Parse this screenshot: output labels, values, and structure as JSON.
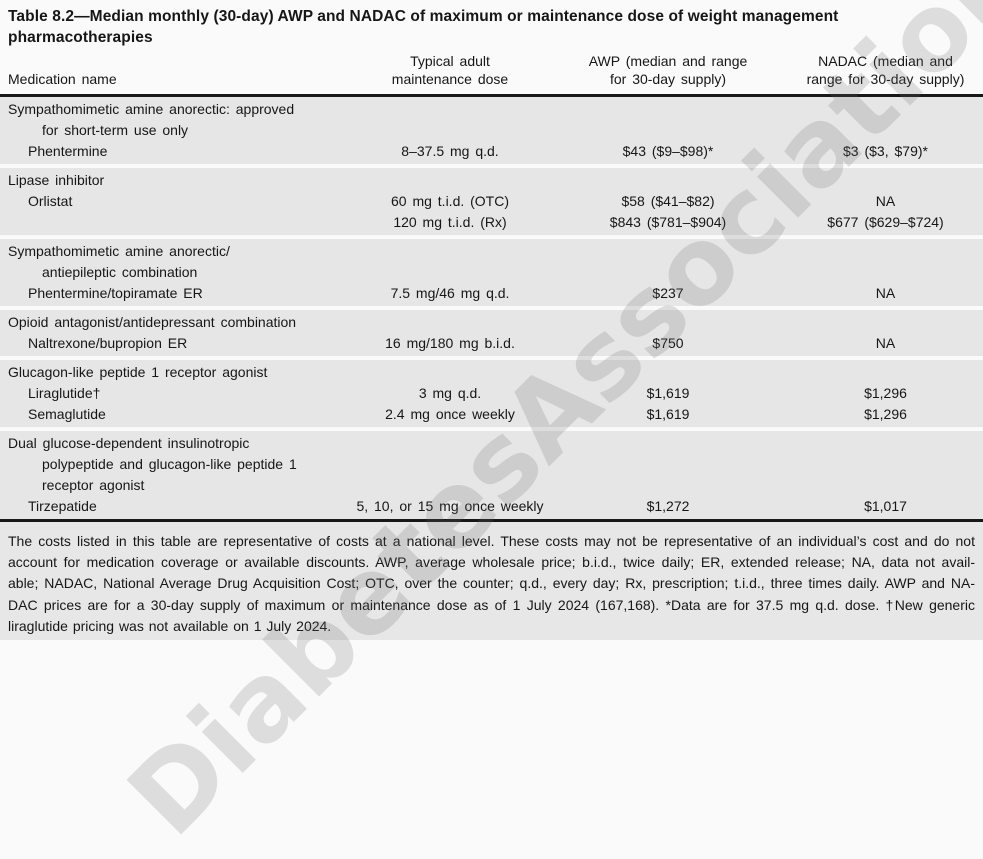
{
  "title": "Table 8.2—Median monthly (30-day) AWP and NADAC of maximum or maintenance dose of weight management pharmacotherapies",
  "headers": {
    "medication": "Medication name",
    "dose_l1": "Typical adult",
    "dose_l2": "maintenance dose",
    "awp_l1": "AWP (median and range",
    "awp_l2": "for 30-day supply)",
    "nadac_l1": "NADAC (median and",
    "nadac_l2": "range for 30-day supply)"
  },
  "sections": [
    {
      "rows": [
        {
          "med": "Sympathomimetic amine anorectic: approved"
        },
        {
          "med": "for short-term use only"
        },
        {
          "med": "Phentermine",
          "dose": "8–37.5 mg q.d.",
          "awp": "$43 ($9–$98)*",
          "nadac": "$3 ($3, $79)*"
        }
      ]
    },
    {
      "rows": [
        {
          "med": "Lipase inhibitor"
        },
        {
          "med": "Orlistat",
          "dose": "60 mg t.i.d. (OTC)",
          "awp": "$58 ($41–$82)",
          "nadac": "NA"
        },
        {
          "med": "",
          "dose": "120 mg t.i.d. (Rx)",
          "awp": "$843 ($781–$904)",
          "nadac": "$677 ($629–$724)"
        }
      ]
    },
    {
      "rows": [
        {
          "med": "Sympathomimetic amine anorectic/"
        },
        {
          "med": "antiepileptic combination"
        },
        {
          "med": "Phentermine/topiramate ER",
          "dose": "7.5 mg/46 mg q.d.",
          "awp": "$237",
          "nadac": "NA"
        }
      ]
    },
    {
      "rows": [
        {
          "med": "Opioid antagonist/antidepressant combination"
        },
        {
          "med": "Naltrexone/bupropion ER",
          "dose": "16 mg/180 mg b.i.d.",
          "awp": "$750",
          "nadac": "NA"
        }
      ]
    },
    {
      "rows": [
        {
          "med": "Glucagon-like peptide 1 receptor agonist"
        },
        {
          "med": "Liraglutide†",
          "dose": "3 mg q.d.",
          "awp": "$1,619",
          "nadac": "$1,296"
        },
        {
          "med": "Semaglutide",
          "dose": "2.4 mg once weekly",
          "awp": "$1,619",
          "nadac": "$1,296"
        }
      ]
    },
    {
      "rows": [
        {
          "med": "Dual glucose-dependent insulinotropic"
        },
        {
          "med": "polypeptide and glucagon-like peptide 1"
        },
        {
          "med": "receptor agonist"
        },
        {
          "med": "Tirzepatide",
          "dose": "5, 10, or 15 mg once weekly",
          "awp": "$1,272",
          "nadac": "$1,017"
        }
      ]
    }
  ],
  "footnote_lines": [
    "The costs listed in this table are representative of costs at a national level. These costs may not be representative of an individual’s cost and do not",
    "account for medication coverage or available discounts. AWP, average wholesale price; b.i.d., twice daily; ER, extended release; NA, data not avail-",
    "able; NADAC, National Average Drug Acquisition Cost; OTC, over the counter; q.d., every day; Rx, prescription; t.i.d., three times daily. AWP and NA-",
    "DAC prices are for a 30-day supply of maximum or maintenance dose as of 1 July 2024 (167,168). *Data are for 37.5 mg q.d. dose. †New generic",
    "liraglutide pricing was not available on 1 July 2024."
  ],
  "watermark": "DiabetesAssociation",
  "colors": {
    "band_gray": "#e6e6e6",
    "footnote_gray": "#e7e7e7",
    "rule_black": "#181818",
    "page_background": "#fafafa"
  }
}
